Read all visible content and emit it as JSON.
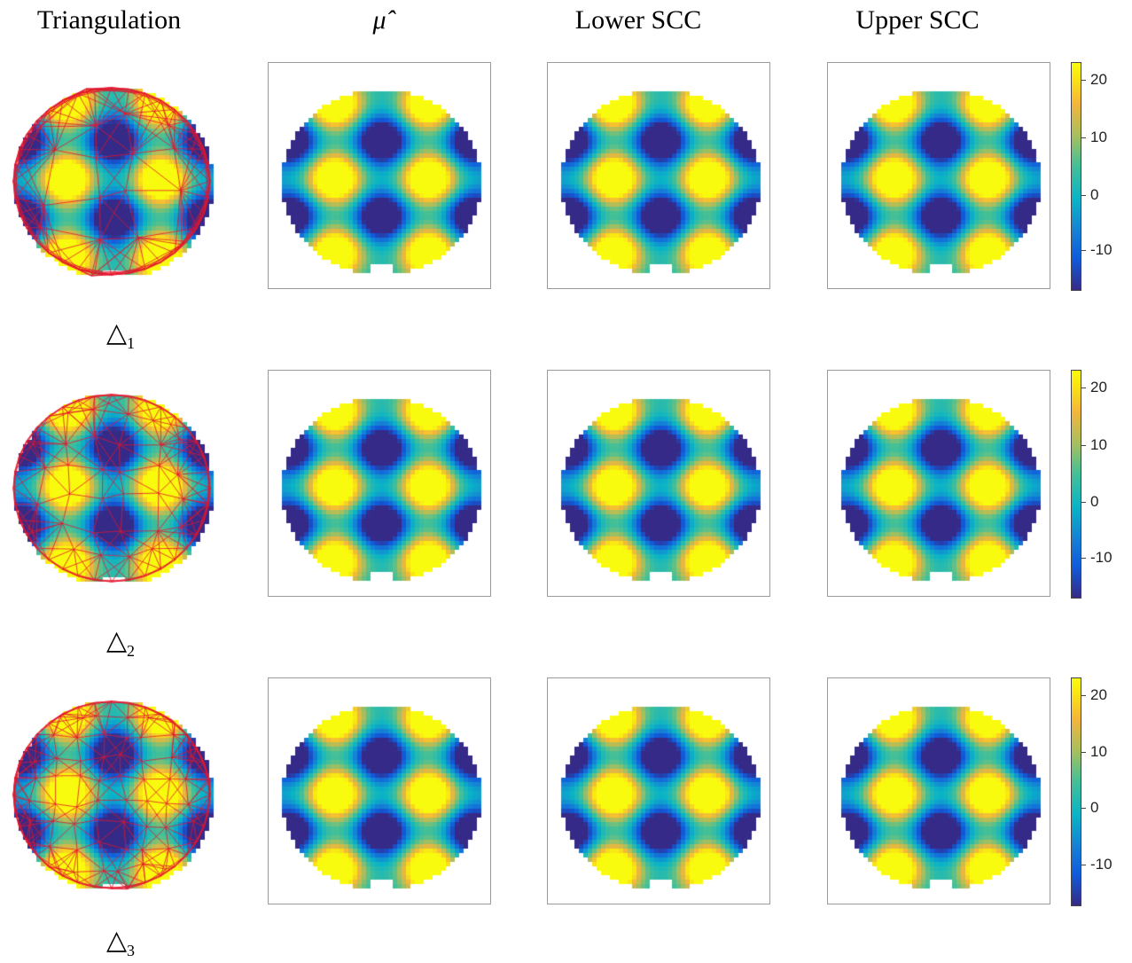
{
  "chart_data": {
    "type": "heatmap",
    "columns": [
      "Triangulation",
      "μ̂",
      "Lower SCC",
      "Upper SCC"
    ],
    "rows": [
      {
        "label": "△",
        "subscript": "1"
      },
      {
        "label": "△",
        "subscript": "2"
      },
      {
        "label": "△",
        "subscript": "3"
      }
    ],
    "colorbar": {
      "range": [
        -17,
        23
      ],
      "ticks": [
        "20",
        "10",
        "0",
        "-10"
      ],
      "tick_values": [
        20,
        10,
        0,
        -10
      ],
      "colormap": "parula"
    },
    "field": {
      "peaks_high": [
        [
          0.27,
          0.5
        ],
        [
          0.73,
          0.5
        ],
        [
          0.27,
          0.9
        ],
        [
          0.73,
          0.9
        ],
        [
          0.27,
          0.1
        ],
        [
          0.73,
          0.1
        ]
      ],
      "peaks_low": [
        [
          0.5,
          0.3
        ],
        [
          0.5,
          0.7
        ],
        [
          0.05,
          0.3
        ],
        [
          0.95,
          0.3
        ],
        [
          0.05,
          0.7
        ],
        [
          0.95,
          0.7
        ]
      ]
    }
  }
}
